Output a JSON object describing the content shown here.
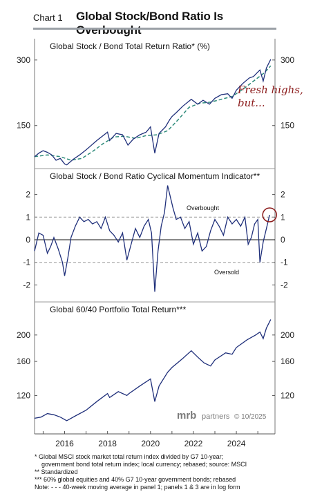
{
  "header": {
    "chart_label": "Chart 1",
    "title": "Global Stock/Bond Ratio Is Overbought"
  },
  "watermark": {
    "brand": "mrb",
    "brand_suffix": "partners",
    "date": "© 10/2025"
  },
  "footnotes": [
    "*   Global MSCI stock market total return index divided by G7 10-year;",
    "government bond total return index; local currency; rebased; source: MSCI",
    "**  Standardized",
    "*** 60% global equities and 40% G7 10-year government bonds; rebased",
    "Note: - - - 40-week moving average in panel 1; panels 1 & 3 are in log form"
  ],
  "colors": {
    "series": "#1f2f7a",
    "moving_average": "#2e8b7a",
    "callout": "#8b1a1a",
    "circle": "#8b1a1a",
    "dashed_ref": "#9a9a9a"
  },
  "chart_data": [
    {
      "type": "line",
      "title": "Global Stock / Bond Total Return Ratio* (%)",
      "yscale": "log",
      "ylim": [
        98,
        320
      ],
      "yticks": [
        150,
        300
      ],
      "xlim": [
        2014.6,
        2025.8
      ],
      "annotation": "Fresh highs, but...",
      "annotation_lines": [
        "Fresh highs,",
        "but..."
      ],
      "series": [
        {
          "values_x": [
            2014.6,
            2014.8,
            2015.0,
            2015.2,
            2015.4,
            2015.6,
            2015.8,
            2016.0,
            2016.1,
            2016.4,
            2016.7,
            2017.0,
            2017.5,
            2018.0,
            2018.1,
            2018.4,
            2018.7,
            2018.95,
            2019.2,
            2019.5,
            2019.8,
            2020.0,
            2020.2,
            2020.4,
            2020.7,
            2020.9,
            2021.0,
            2021.2,
            2021.5,
            2021.9,
            2022.2,
            2022.45,
            2022.75,
            2023.0,
            2023.3,
            2023.6,
            2023.8,
            2024.0,
            2024.3,
            2024.6,
            2024.8,
            2025.0,
            2025.1,
            2025.25,
            2025.4,
            2025.6
          ],
          "values_y": [
            108,
            112,
            115,
            113,
            110,
            104,
            106,
            100,
            99,
            105,
            110,
            116,
            128,
            140,
            128,
            138,
            136,
            122,
            130,
            136,
            140,
            148,
            112,
            138,
            148,
            160,
            165,
            172,
            184,
            198,
            188,
            196,
            188,
            200,
            208,
            210,
            200,
            218,
            234,
            248,
            252,
            264,
            270,
            240,
            276,
            302
          ]
        },
        {
          "values_x": [
            2014.6,
            2015.2,
            2015.8,
            2016.3,
            2016.8,
            2017.3,
            2017.8,
            2018.3,
            2018.8,
            2019.3,
            2019.8,
            2020.3,
            2020.8,
            2021.3,
            2021.8,
            2022.3,
            2022.8,
            2023.3,
            2023.8,
            2024.3,
            2024.8,
            2025.3,
            2025.6
          ],
          "values_y": [
            108,
            110,
            108,
            104,
            106,
            114,
            124,
            133,
            134,
            131,
            135,
            136,
            142,
            160,
            182,
            190,
            192,
            198,
            204,
            220,
            240,
            262,
            282
          ]
        }
      ]
    },
    {
      "type": "line",
      "title": "Global Stock / Bond Ratio Cyclical Momentum Indicator**",
      "ylim": [
        -2.6,
        2.6
      ],
      "yticks": [
        -2,
        -1,
        0,
        1,
        2
      ],
      "xlim": [
        2014.6,
        2025.8
      ],
      "reference_lines": [
        0,
        1,
        -1
      ],
      "label_overbought": "Overbought",
      "label_oversold": "Oversold",
      "series": [
        {
          "values_x": [
            2014.6,
            2014.8,
            2015.0,
            2015.2,
            2015.35,
            2015.5,
            2015.7,
            2015.9,
            2016.0,
            2016.15,
            2016.3,
            2016.5,
            2016.7,
            2016.9,
            2017.1,
            2017.3,
            2017.5,
            2017.7,
            2017.9,
            2018.1,
            2018.3,
            2018.5,
            2018.7,
            2018.9,
            2019.1,
            2019.3,
            2019.5,
            2019.7,
            2019.9,
            2020.05,
            2020.2,
            2020.35,
            2020.5,
            2020.65,
            2020.8,
            2020.95,
            2021.05,
            2021.2,
            2021.4,
            2021.6,
            2021.8,
            2022.0,
            2022.2,
            2022.4,
            2022.6,
            2022.8,
            2023.0,
            2023.2,
            2023.4,
            2023.6,
            2023.8,
            2024.0,
            2024.2,
            2024.4,
            2024.55,
            2024.7,
            2024.85,
            2025.0,
            2025.1,
            2025.25,
            2025.4,
            2025.55
          ],
          "values_y": [
            -0.5,
            0.3,
            0.2,
            -0.6,
            -0.3,
            0.1,
            -0.4,
            -1.0,
            -1.6,
            -0.8,
            0.1,
            0.6,
            1.0,
            0.8,
            0.9,
            0.7,
            0.8,
            0.5,
            1.0,
            0.4,
            0.2,
            -0.1,
            0.3,
            -0.9,
            -0.2,
            0.5,
            0.1,
            0.6,
            0.9,
            0.3,
            -2.3,
            -0.5,
            0.6,
            1.2,
            2.4,
            1.8,
            1.4,
            0.9,
            1.0,
            0.5,
            0.8,
            -0.2,
            0.3,
            -0.5,
            -0.3,
            0.4,
            0.9,
            0.6,
            0.2,
            1.0,
            0.7,
            0.9,
            0.6,
            1.0,
            -0.2,
            0.1,
            0.7,
            0.9,
            -1.0,
            -0.1,
            0.5,
            1.1
          ]
        }
      ]
    },
    {
      "type": "line",
      "title": "Global 60/40 Portfolio Total Return***",
      "yscale": "log",
      "ylim": [
        92,
        238
      ],
      "yticks": [
        120,
        160,
        200
      ],
      "xlim": [
        2014.6,
        2025.8
      ],
      "x_ticks": [
        "2016",
        "2018",
        "2020",
        "2022",
        "2024"
      ],
      "x_tick_values": [
        2016,
        2018,
        2020,
        2022,
        2024
      ],
      "series": [
        {
          "values_x": [
            2014.6,
            2014.9,
            2015.2,
            2015.5,
            2015.8,
            2016.0,
            2016.1,
            2016.5,
            2017.0,
            2017.5,
            2018.0,
            2018.1,
            2018.5,
            2018.9,
            2019.0,
            2019.5,
            2020.0,
            2020.2,
            2020.4,
            2020.8,
            2021.0,
            2021.5,
            2021.9,
            2022.2,
            2022.5,
            2022.8,
            2023.0,
            2023.5,
            2023.8,
            2024.0,
            2024.5,
            2024.9,
            2025.1,
            2025.25,
            2025.4,
            2025.6
          ],
          "values_y": [
            99,
            100,
            103,
            102,
            100,
            98,
            97,
            101,
            106,
            114,
            122,
            118,
            124,
            120,
            122,
            130,
            138,
            114,
            130,
            146,
            152,
            164,
            175,
            166,
            158,
            154,
            162,
            172,
            170,
            180,
            192,
            200,
            205,
            194,
            212,
            228
          ]
        }
      ]
    }
  ]
}
